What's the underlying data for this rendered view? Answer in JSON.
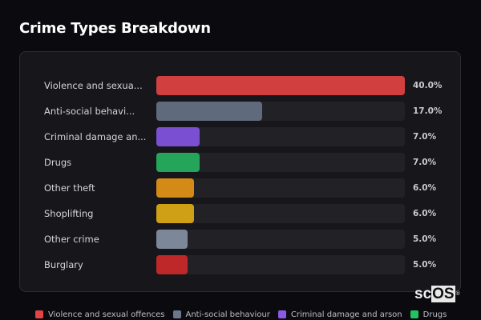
{
  "page": {
    "title": "Crime Types Breakdown"
  },
  "chart_data": {
    "type": "bar",
    "orientation": "horizontal",
    "title": "Crime Types Breakdown",
    "categories": [
      "Violence and sexual offences",
      "Anti-social behaviour",
      "Criminal damage and arson",
      "Drugs",
      "Other theft",
      "Shoplifting",
      "Other crime",
      "Burglary"
    ],
    "display_labels": [
      "Violence and sexua...",
      "Anti-social behavi...",
      "Criminal damage an...",
      "Drugs",
      "Other theft",
      "Shoplifting",
      "Other crime",
      "Burglary"
    ],
    "values": [
      40.0,
      17.0,
      7.0,
      7.0,
      6.0,
      6.0,
      5.0,
      5.0
    ],
    "value_labels": [
      "40.0%",
      "17.0%",
      "7.0%",
      "7.0%",
      "6.0%",
      "6.0%",
      "5.0%",
      "5.0%"
    ],
    "colors": [
      "#d13f3f",
      "#5f6b7c",
      "#7a4fd1",
      "#25a55a",
      "#d48a16",
      "#cf9f15",
      "#7c889a",
      "#bf2828"
    ],
    "xlabel": "",
    "ylabel": "",
    "xlim": [
      0,
      40
    ],
    "grid": false,
    "legend_position": "bottom"
  },
  "legend": [
    {
      "label": "Violence and sexual offences",
      "color": "#e04444"
    },
    {
      "label": "Anti-social behaviour",
      "color": "#6b778a"
    },
    {
      "label": "Criminal damage and arson",
      "color": "#8a5ae6"
    },
    {
      "label": "Drugs",
      "color": "#22c35e"
    }
  ],
  "watermark": {
    "a": "sc",
    "b": "OS",
    "reg": "®"
  }
}
